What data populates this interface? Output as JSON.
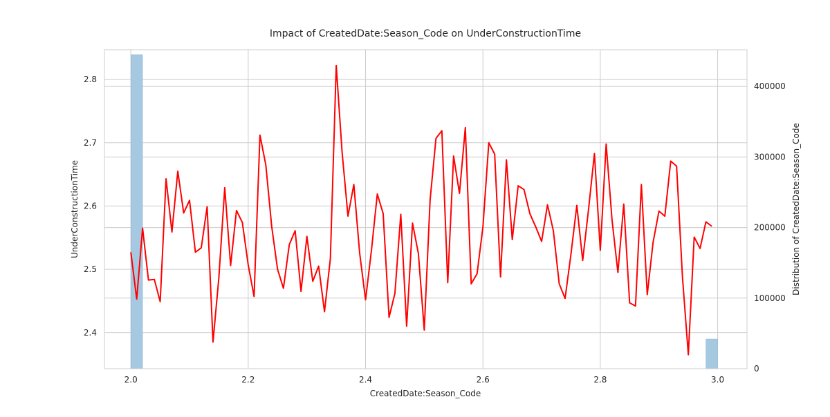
{
  "chart_data": {
    "type": "line",
    "title": "Impact of CreatedDate:Season_Code on UnderConstructionTime",
    "xlabel": "CreatedDate:Season_Code",
    "ylabel": "UnderConstructionTime",
    "y2label": "Distribution of CreatedDate:Season_Code",
    "xlim": [
      1.955,
      3.05
    ],
    "ylim": [
      2.343,
      2.847
    ],
    "y2lim": [
      0,
      452000
    ],
    "xticks": [
      "2.0",
      "2.2",
      "2.4",
      "2.6",
      "2.8",
      "3.0"
    ],
    "xtick_values": [
      2.0,
      2.2,
      2.4,
      2.6,
      2.8,
      3.0
    ],
    "yticks": [
      "2.4",
      "2.5",
      "2.6",
      "2.7",
      "2.8"
    ],
    "ytick_values": [
      2.4,
      2.5,
      2.6,
      2.7,
      2.8
    ],
    "y2ticks": [
      "0",
      "100000",
      "200000",
      "300000",
      "400000"
    ],
    "y2tick_values": [
      0,
      100000,
      200000,
      300000,
      400000
    ],
    "grid": true,
    "line_color": "#ff0000",
    "bar_color": "#a6c8e0",
    "histogram": [
      {
        "x0": 2.0,
        "x1": 2.02,
        "count": 445000
      },
      {
        "x0": 2.98,
        "x1": 3.0,
        "count": 42000
      }
    ],
    "series": [
      {
        "x": [
          2.0,
          2.01,
          2.02,
          2.03,
          2.04,
          2.05,
          2.06,
          2.07,
          2.08,
          2.09,
          2.1,
          2.11,
          2.12,
          2.13,
          2.14,
          2.15,
          2.16,
          2.17,
          2.18,
          2.19,
          2.2,
          2.21,
          2.22,
          2.23,
          2.24,
          2.25,
          2.26,
          2.27,
          2.28,
          2.29,
          2.3,
          2.31,
          2.32,
          2.33,
          2.34,
          2.35,
          2.36,
          2.37,
          2.38,
          2.39,
          2.4,
          2.41,
          2.42,
          2.43,
          2.44,
          2.45,
          2.46,
          2.47,
          2.48,
          2.49,
          2.5,
          2.51,
          2.52,
          2.53,
          2.54,
          2.55,
          2.56,
          2.57,
          2.58,
          2.59,
          2.6,
          2.61,
          2.62,
          2.63,
          2.64,
          2.65,
          2.66,
          2.67,
          2.68,
          2.69,
          2.7,
          2.71,
          2.72,
          2.73,
          2.74,
          2.75,
          2.76,
          2.77,
          2.78,
          2.79,
          2.8,
          2.81,
          2.82,
          2.83,
          2.84,
          2.85,
          2.86,
          2.87,
          2.88,
          2.89,
          2.9,
          2.91,
          2.92,
          2.93,
          2.94,
          2.95,
          2.96,
          2.97,
          2.98,
          2.99
        ],
        "values": [
          2.527,
          2.453,
          2.565,
          2.483,
          2.484,
          2.449,
          2.643,
          2.559,
          2.655,
          2.589,
          2.609,
          2.527,
          2.534,
          2.599,
          2.385,
          2.487,
          2.629,
          2.506,
          2.593,
          2.574,
          2.507,
          2.457,
          2.712,
          2.665,
          2.568,
          2.5,
          2.47,
          2.539,
          2.561,
          2.465,
          2.552,
          2.481,
          2.505,
          2.433,
          2.517,
          2.822,
          2.685,
          2.584,
          2.634,
          2.525,
          2.452,
          2.53,
          2.619,
          2.588,
          2.424,
          2.462,
          2.587,
          2.41,
          2.573,
          2.525,
          2.404,
          2.61,
          2.707,
          2.719,
          2.479,
          2.679,
          2.62,
          2.724,
          2.477,
          2.493,
          2.567,
          2.7,
          2.682,
          2.488,
          2.673,
          2.547,
          2.632,
          2.626,
          2.588,
          2.567,
          2.544,
          2.602,
          2.561,
          2.477,
          2.454,
          2.524,
          2.601,
          2.514,
          2.595,
          2.683,
          2.53,
          2.698,
          2.578,
          2.495,
          2.603,
          2.447,
          2.442,
          2.634,
          2.46,
          2.543,
          2.592,
          2.584,
          2.671,
          2.663,
          2.488,
          2.365,
          2.551,
          2.533,
          2.575,
          2.568
        ]
      }
    ]
  }
}
